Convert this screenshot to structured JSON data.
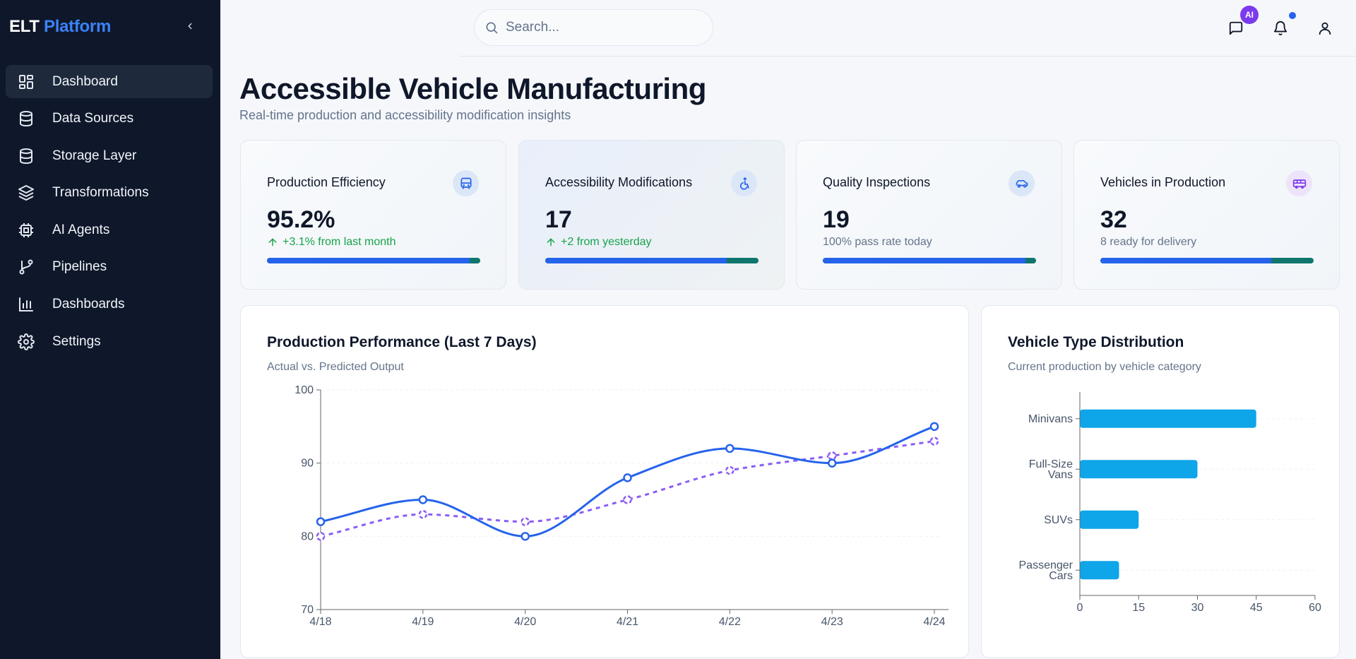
{
  "brand": {
    "part1": "ELT",
    "part2": "Platform"
  },
  "sidebar": {
    "items": [
      {
        "label": "Dashboard",
        "icon": "dashboard-icon",
        "active": true
      },
      {
        "label": "Data Sources",
        "icon": "database-icon"
      },
      {
        "label": "Storage Layer",
        "icon": "storage-icon"
      },
      {
        "label": "Transformations",
        "icon": "layers-icon"
      },
      {
        "label": "AI Agents",
        "icon": "cpu-icon"
      },
      {
        "label": "Pipelines",
        "icon": "git-branch-icon"
      },
      {
        "label": "Dashboards",
        "icon": "bar-chart-icon"
      },
      {
        "label": "Settings",
        "icon": "gear-icon"
      }
    ]
  },
  "header": {
    "search_placeholder": "Search...",
    "ai_badge": "AI"
  },
  "page": {
    "title": "Accessible Vehicle Manufacturing",
    "subtitle": "Real-time production and accessibility modification insights"
  },
  "stats": [
    {
      "title": "Production Efficiency",
      "value": "95.2%",
      "change": "+3.1% from last month",
      "trend": "up",
      "progress": 0.95,
      "icon": "bus-icon",
      "icon_color": "#2563eb",
      "icon_bg": "#dbe6f8"
    },
    {
      "title": "Accessibility Modifications",
      "value": "17",
      "change": "+2 from yesterday",
      "trend": "up",
      "progress": 0.85,
      "icon": "wheelchair-icon",
      "icon_color": "#2563eb",
      "icon_bg": "#dbe6f8"
    },
    {
      "title": "Quality Inspections",
      "value": "19",
      "change": "100% pass rate today",
      "trend": "neutral",
      "progress": 0.95,
      "icon": "car-icon",
      "icon_color": "#2563eb",
      "icon_bg": "#dbe6f8"
    },
    {
      "title": "Vehicles in Production",
      "value": "32",
      "change": "8 ready for delivery",
      "trend": "neutral",
      "progress": 0.8,
      "icon": "van-icon",
      "icon_color": "#7c3aed",
      "icon_bg": "#ede4fb"
    }
  ],
  "performance": {
    "title": "Production Performance (Last 7 Days)",
    "subtitle": "Actual vs. Predicted Output"
  },
  "distribution": {
    "title": "Vehicle Type Distribution",
    "subtitle": "Current production by vehicle category"
  },
  "chart_data": [
    {
      "type": "line",
      "x": [
        "4/18",
        "4/19",
        "4/20",
        "4/21",
        "4/22",
        "4/23",
        "4/24"
      ],
      "series": [
        {
          "values": [
            82,
            85,
            80,
            88,
            92,
            90,
            95
          ],
          "color": "#2563eb",
          "style": "solid"
        },
        {
          "values": [
            80,
            83,
            82,
            85,
            89,
            91,
            93
          ],
          "color": "#8b5cf6",
          "style": "dashed"
        }
      ],
      "ylim": [
        70,
        100
      ],
      "yticks": [
        70,
        80,
        90,
        100
      ],
      "grid": true
    },
    {
      "type": "bar",
      "orientation": "horizontal",
      "categories": [
        [
          "Minivans"
        ],
        [
          "Full-Size",
          "Vans"
        ],
        [
          "SUVs"
        ],
        [
          "Passenger",
          "Cars"
        ]
      ],
      "values": [
        45,
        30,
        15,
        10
      ],
      "color": "#0ea5e9",
      "xlim": [
        0,
        60
      ],
      "xticks": [
        0,
        15,
        30,
        45,
        60
      ],
      "grid": true
    }
  ]
}
